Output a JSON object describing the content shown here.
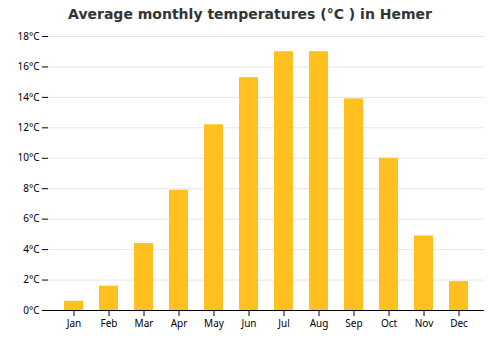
{
  "chart_data": {
    "type": "bar",
    "title": "Average monthly temperatures (°C ) in Hemer",
    "categories": [
      "Jan",
      "Feb",
      "Mar",
      "Apr",
      "May",
      "Jun",
      "Jul",
      "Aug",
      "Sep",
      "Oct",
      "Nov",
      "Dec"
    ],
    "values": [
      0.6,
      1.6,
      4.4,
      7.9,
      12.2,
      15.3,
      17.0,
      17.0,
      13.9,
      10.0,
      4.9,
      1.9
    ],
    "color": "#FFC020",
    "ylim": [
      0,
      18
    ],
    "yticks": [
      {
        "value": 0,
        "label": "0°C"
      },
      {
        "value": 2,
        "label": "2°C"
      },
      {
        "value": 4,
        "label": "4°C"
      },
      {
        "value": 6,
        "label": "6°C"
      },
      {
        "value": 8,
        "label": "8°C"
      },
      {
        "value": 10,
        "label": "10°C"
      },
      {
        "value": 12,
        "label": "12°C"
      },
      {
        "value": 14,
        "label": "14°C"
      },
      {
        "value": 16,
        "label": "16°C"
      },
      {
        "value": 18,
        "label": "18°C"
      }
    ],
    "grid": true
  }
}
